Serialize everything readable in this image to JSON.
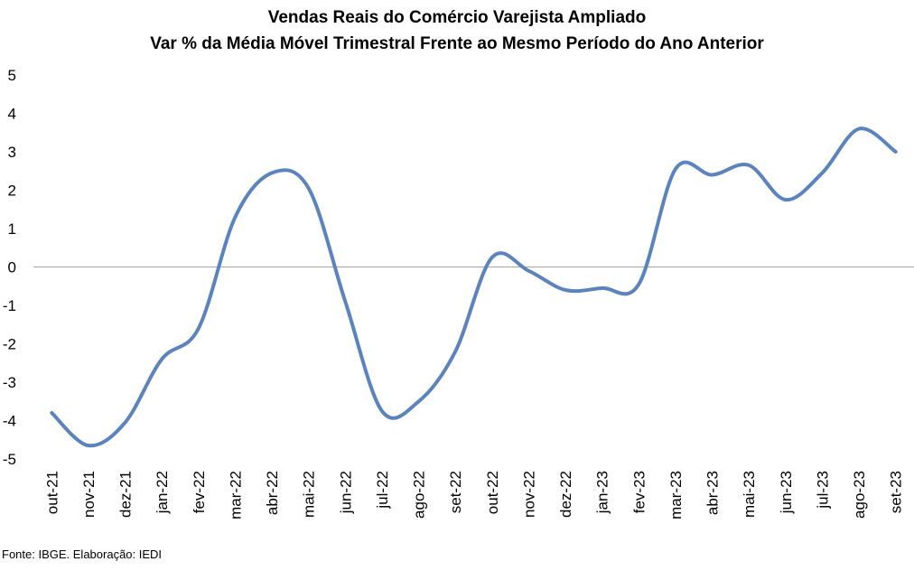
{
  "chart_data": {
    "type": "line",
    "title": "Vendas Reais do Comércio Varejista Ampliado",
    "subtitle": "Var % da Média Móvel Trimestral Frente ao Mesmo Período do Ano Anterior",
    "xlabel": "",
    "ylabel": "",
    "categories": [
      "out-21",
      "nov-21",
      "dez-21",
      "jan-22",
      "fev-22",
      "mar-22",
      "abr-22",
      "mai-22",
      "jun-22",
      "jul-22",
      "ago-22",
      "set-22",
      "out-22",
      "nov-22",
      "dez-22",
      "jan-23",
      "fev-23",
      "mar-23",
      "abr-23",
      "mai-23",
      "jun-23",
      "jul-23",
      "ago-23",
      "set-23"
    ],
    "series": [
      {
        "name": "",
        "color": "#5b84bf",
        "values": [
          -3.8,
          -4.65,
          -4.05,
          -2.4,
          -1.6,
          1.3,
          2.45,
          2.05,
          -0.9,
          -3.75,
          -3.5,
          -2.2,
          0.25,
          -0.1,
          -0.6,
          -0.55,
          -0.45,
          2.55,
          2.4,
          2.65,
          1.75,
          2.45,
          3.6,
          3.0
        ]
      }
    ],
    "yticks": [
      5,
      4,
      3,
      2,
      1,
      0,
      -1,
      -2,
      -3,
      -4,
      -5
    ],
    "ylim": [
      -5,
      5
    ],
    "grid": false,
    "legend": "none",
    "zero_line_color": "#a6a6a6"
  },
  "source_note": "Fonte: IBGE. Elaboração: IEDI"
}
